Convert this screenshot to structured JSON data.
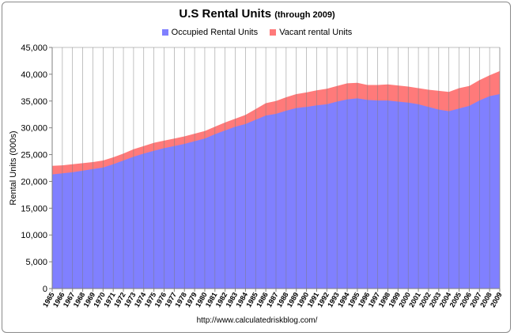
{
  "chart_data": {
    "type": "area",
    "title": "U.S Rental Units",
    "subtitle": "(through 2009)",
    "ylabel": "Rental Units (000s)",
    "xlabel": "",
    "ylim": [
      0,
      45000
    ],
    "yticks": [
      "0",
      "5,000",
      "10,000",
      "15,000",
      "20,000",
      "25,000",
      "30,000",
      "35,000",
      "40,000",
      "45,000"
    ],
    "x_tick_labels": [
      "1965",
      "1966",
      "1967",
      "1968",
      "1969",
      "1970",
      "1971",
      "1972",
      "1973",
      "1974",
      "1975",
      "1976",
      "1977",
      "1978",
      "1979",
      "1980",
      "1981",
      "1982",
      "1983",
      "1984",
      "1985",
      "1986",
      "1987",
      "1988",
      "1989",
      "1990",
      "1991",
      "1992",
      "1993",
      "1994",
      "1995",
      "1996",
      "1997",
      "1998",
      "1999",
      "2000",
      "2001",
      "2002",
      "2003",
      "2004",
      "2005",
      "2006",
      "2007",
      "2008",
      "2009"
    ],
    "grid": "vertical",
    "stacked": true,
    "legend_position": "top",
    "years": [
      1965,
      1966,
      1967,
      1968,
      1969,
      1970,
      1971,
      1972,
      1973,
      1974,
      1975,
      1976,
      1977,
      1978,
      1979,
      1980,
      1981,
      1982,
      1983,
      1984,
      1985,
      1986,
      1987,
      1988,
      1989,
      1990,
      1991,
      1992,
      1993,
      1994,
      1995,
      1996,
      1997,
      1998,
      1999,
      2000,
      2001,
      2002,
      2003,
      2004,
      2005,
      2006,
      2007,
      2008,
      2009
    ],
    "series": [
      {
        "name": "Occupied Rental Units",
        "color": "#8080ff",
        "values": [
          21300,
          21500,
          21700,
          22000,
          22300,
          22600,
          23200,
          23900,
          24600,
          25200,
          25700,
          26200,
          26600,
          27000,
          27500,
          28000,
          28800,
          29500,
          30200,
          30700,
          31500,
          32300,
          32600,
          33200,
          33700,
          33900,
          34200,
          34400,
          34900,
          35300,
          35500,
          35200,
          35100,
          35100,
          34900,
          34700,
          34400,
          33900,
          33400,
          33100,
          33600,
          34100,
          35100,
          35900,
          36300
        ]
      },
      {
        "name": "Vacant rental Units",
        "color": "#ff7a7a",
        "values": [
          1600,
          1500,
          1500,
          1400,
          1300,
          1300,
          1300,
          1300,
          1400,
          1400,
          1500,
          1400,
          1400,
          1400,
          1400,
          1400,
          1400,
          1500,
          1500,
          1700,
          2000,
          2300,
          2400,
          2500,
          2600,
          2700,
          2800,
          2900,
          2900,
          3000,
          2900,
          2800,
          2900,
          3000,
          3000,
          3000,
          3000,
          3200,
          3500,
          3600,
          3800,
          3700,
          3800,
          3900,
          4300
        ]
      }
    ]
  },
  "footer": "http://www.calculatedriskblog.com/"
}
